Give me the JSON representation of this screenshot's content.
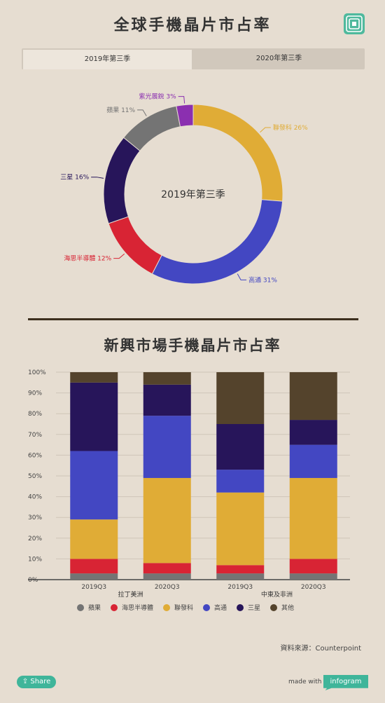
{
  "page": {
    "title": "全球手機晶片市占率",
    "tabs": [
      "2019年第三季",
      "2020年第三季"
    ],
    "chart2_title": "新興市場手機晶片市占率",
    "source": "資料來源：Counterpoint",
    "share_label": "Share",
    "made_with": "made with",
    "brand": "infogram"
  },
  "chart_data": [
    {
      "type": "pie",
      "center_label": "2019年第三季",
      "labels": [
        "聯發科 26%",
        "高通 31%",
        "海思半導體 12%",
        "三星 16%",
        "蘋果 11%",
        "紫光展銳 3%"
      ],
      "names": [
        "聯發科",
        "高通",
        "海思半導體",
        "三星",
        "蘋果",
        "紫光展銳"
      ],
      "values": [
        26,
        31,
        12,
        16,
        11,
        3
      ],
      "colors": [
        "#e0ac36",
        "#4347c2",
        "#d82434",
        "#27155a",
        "#747474",
        "#8b2fb0"
      ]
    },
    {
      "type": "bar",
      "stacked": true,
      "categories": [
        "2019Q3",
        "2020Q3",
        "2019Q3",
        "2020Q3"
      ],
      "groups": [
        "拉丁美洲",
        "中東及非洲"
      ],
      "yticks": [
        "0%",
        "10%",
        "20%",
        "30%",
        "40%",
        "50%",
        "60%",
        "70%",
        "80%",
        "90%",
        "100%"
      ],
      "ylim": [
        0,
        100
      ],
      "series": [
        {
          "name": "蘋果",
          "color": "#747474",
          "values": [
            3,
            3,
            3,
            3
          ]
        },
        {
          "name": "海思半導體",
          "color": "#d82434",
          "values": [
            7,
            5,
            4,
            7
          ]
        },
        {
          "name": "聯發科",
          "color": "#e0ac36",
          "values": [
            19,
            41,
            35,
            39
          ]
        },
        {
          "name": "高通",
          "color": "#4347c2",
          "values": [
            33,
            30,
            11,
            16
          ]
        },
        {
          "name": "三星",
          "color": "#27155a",
          "values": [
            33,
            15,
            22,
            12
          ]
        },
        {
          "name": "其他",
          "color": "#54432c",
          "values": [
            5,
            6,
            25,
            23
          ]
        }
      ],
      "legend_position": "bottom"
    }
  ]
}
